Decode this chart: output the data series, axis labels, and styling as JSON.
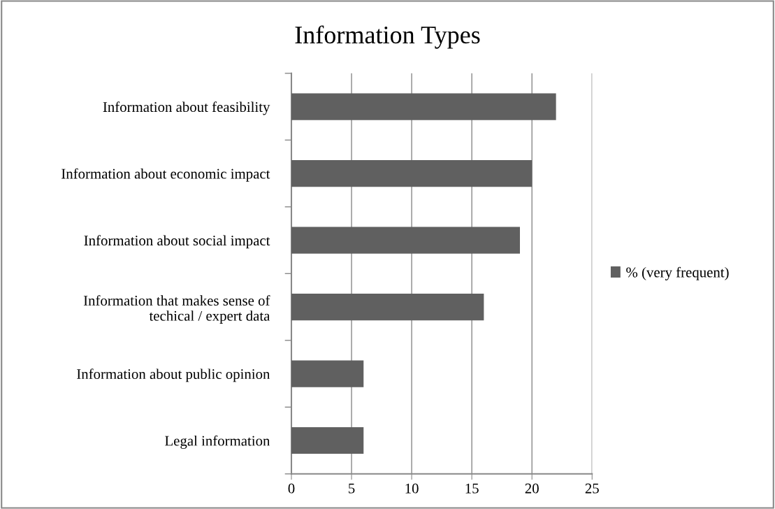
{
  "chart_data": {
    "type": "bar",
    "orientation": "horizontal",
    "title": "Information Types",
    "categories": [
      "Information about feasibility",
      "Information about economic impact",
      "Information about social impact",
      "Information that makes sense of\ntechical / expert data",
      "Information about public opinion",
      "Legal information"
    ],
    "series": [
      {
        "name": "% (very frequent)",
        "color": "#606060",
        "values": [
          22,
          20,
          19,
          16,
          6,
          6
        ]
      }
    ],
    "xlim": [
      0,
      25
    ],
    "xticks": [
      0,
      5,
      10,
      15,
      20,
      25
    ],
    "grid": "x",
    "legend": "right"
  }
}
